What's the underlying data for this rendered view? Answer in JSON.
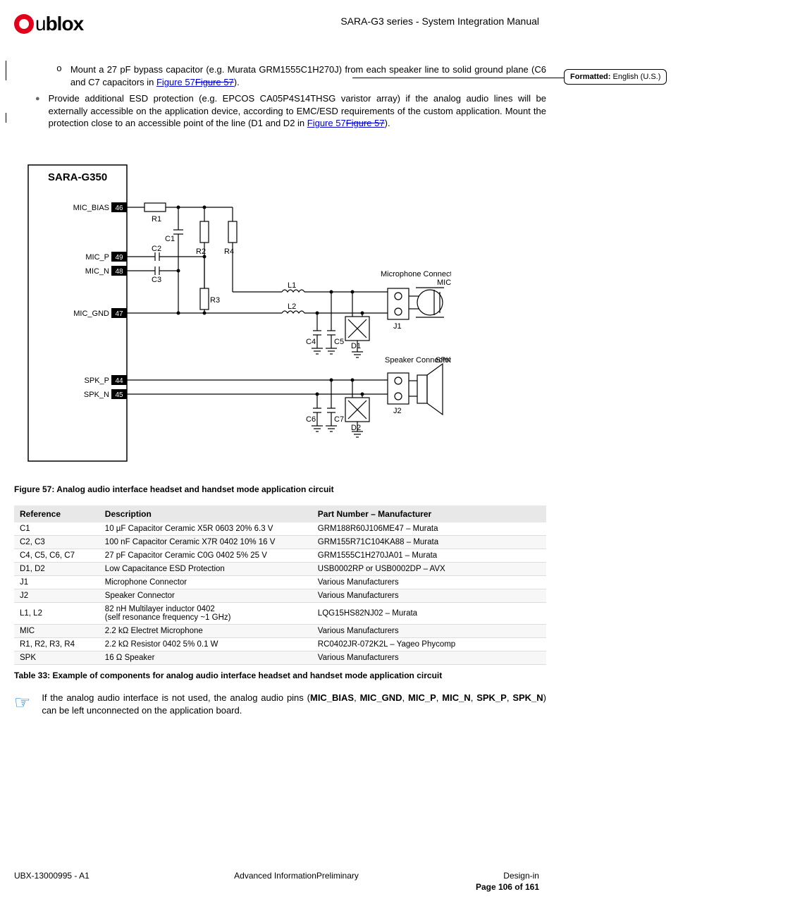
{
  "header": {
    "logo_text": "blox",
    "doc_title": "SARA-G3 series - System Integration Manual"
  },
  "bullets": {
    "o1_pre": "Mount a 27 pF bypass capacitor (e.g. Murata GRM1555C1H270J) from each speaker line to solid ground plane (C6 and C7 capacitors in ",
    "fig_new": "Figure 57",
    "fig_old": "Figure 57",
    "o1_post": ").",
    "dot1_pre": "Provide additional ESD protection (e.g. EPCOS CA05P4S14THSG varistor array) if the analog audio lines will be externally accessible on the application device, according to EMC/ESD requirements of the custom application. Mount the protection close to an accessible point of the line (D1 and D2 in ",
    "dot1_post": ")."
  },
  "comment": {
    "label": "Formatted:",
    "value": "English (U.S.)"
  },
  "diagram": {
    "title": "SARA-G350",
    "pins": [
      {
        "name": "MIC_BIAS",
        "num": "46"
      },
      {
        "name": "MIC_P",
        "num": "49"
      },
      {
        "name": "MIC_N",
        "num": "48"
      },
      {
        "name": "MIC_GND",
        "num": "47"
      },
      {
        "name": "SPK_P",
        "num": "44"
      },
      {
        "name": "SPK_N",
        "num": "45"
      }
    ],
    "labels": {
      "R1": "R1",
      "R2": "R2",
      "R3": "R3",
      "R4": "R4",
      "C1": "C1",
      "C2": "C2",
      "C3": "C3",
      "C4": "C4",
      "C5": "C5",
      "C6": "C6",
      "C7": "C7",
      "L1": "L1",
      "L2": "L2",
      "D1": "D1",
      "D2": "D2",
      "J1": "J1",
      "J2": "J2",
      "mic_conn": "Microphone\nConnector",
      "mic": "MIC",
      "spk_conn": "Speaker\nConnector",
      "spk": "SPK"
    }
  },
  "caption_fig": "Figure 57: Analog audio interface headset and handset mode application circuit",
  "table": {
    "cols": [
      "Reference",
      "Description",
      "Part Number – Manufacturer"
    ],
    "col_widths": [
      "16%",
      "40%",
      "44%"
    ],
    "rows": [
      [
        "C1",
        "10 µF Capacitor Ceramic X5R 0603 20% 6.3 V",
        "GRM188R60J106ME47 – Murata"
      ],
      [
        "C2, C3",
        "100 nF Capacitor Ceramic X7R 0402 10% 16 V",
        "GRM155R71C104KA88 – Murata"
      ],
      [
        "C4, C5, C6, C7",
        "27 pF Capacitor Ceramic C0G 0402 5% 25 V",
        "GRM1555C1H270JA01 – Murata"
      ],
      [
        "D1, D2",
        "Low Capacitance ESD Protection",
        "USB0002RP or USB0002DP – AVX"
      ],
      [
        "J1",
        "Microphone Connector",
        "Various Manufacturers"
      ],
      [
        "J2",
        "Speaker Connector",
        "Various Manufacturers"
      ],
      [
        "L1, L2",
        "82 nH Multilayer inductor 0402\n(self resonance frequency ~1 GHz)",
        "LQG15HS82NJ02 – Murata"
      ],
      [
        "MIC",
        "2.2 kΩ Electret Microphone",
        "Various Manufacturers"
      ],
      [
        "R1, R2, R3, R4",
        "2.2 kΩ Resistor 0402 5% 0.1 W",
        "RC0402JR-072K2L – Yageo Phycomp"
      ],
      [
        "SPK",
        "16 Ω Speaker",
        "Various Manufacturers"
      ]
    ]
  },
  "caption_tbl": "Table 33: Example of components for analog audio interface headset and handset mode application circuit",
  "note": {
    "pre": "If the analog audio interface is not used, the analog audio pins (",
    "bold_list": [
      "MIC_BIAS",
      "MIC_GND",
      "MIC_P",
      "MIC_N",
      "SPK_P",
      "SPK_N"
    ],
    "post": ") can be left unconnected on the application board."
  },
  "footer": {
    "left": "UBX-13000995 - A1",
    "center": "Advanced InformationPreliminary",
    "right": "Design-in",
    "page": "Page 106 of 161"
  },
  "colors": {
    "link": "#0000cc",
    "accent": "#e2001a",
    "header_bg": "#e8e8e8",
    "note_icon": "#0070c0"
  }
}
